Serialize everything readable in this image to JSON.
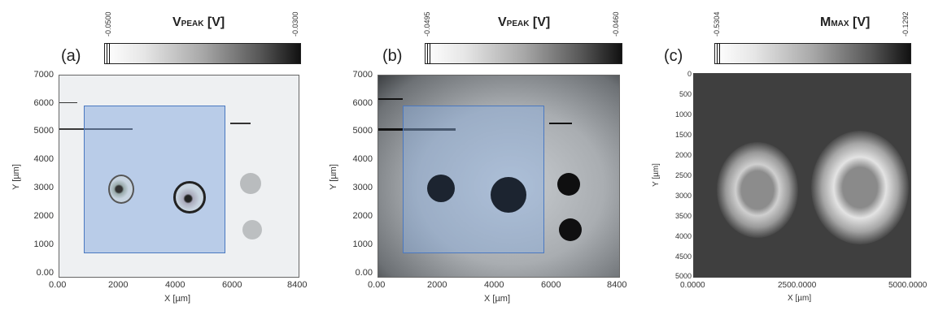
{
  "panels": [
    {
      "label": "(a)",
      "colorbar": {
        "title_main": "V",
        "title_sub": "PEAK",
        "title_unit": " [V]",
        "min": "-0.0500",
        "max": "-0.0300"
      },
      "xticks": [
        "0.00",
        "2000",
        "4000",
        "6000",
        "8400"
      ],
      "yticks": [
        "7000",
        "6000",
        "5000",
        "4000",
        "3000",
        "2000",
        "1000",
        "0.00"
      ],
      "xlabel": "X [µm]",
      "ylabel": "Y [µm]"
    },
    {
      "label": "(b)",
      "colorbar": {
        "title_main": "V",
        "title_sub": "PEAK",
        "title_unit": " [V]",
        "min": "-0.0495",
        "max": "-0.0460"
      },
      "xticks": [
        "0.00",
        "2000",
        "4000",
        "6000",
        "8400"
      ],
      "yticks": [
        "7000",
        "6000",
        "5000",
        "4000",
        "3000",
        "2000",
        "1000",
        "0.00"
      ],
      "xlabel": "X [µm]",
      "ylabel": "Y [µm]"
    },
    {
      "label": "(c)",
      "colorbar": {
        "title_main": "M",
        "title_sub": "MAX",
        "title_unit": " [V]",
        "min": "-0.5304",
        "max": "-0.1292"
      },
      "xticks": [
        "0.0000",
        "2500.0000",
        "5000.0000"
      ],
      "yticks": [
        "0",
        "500",
        "1000",
        "1500",
        "2000",
        "2500",
        "3000",
        "3500",
        "4000",
        "4500",
        "5000"
      ],
      "xlabel": "X [µm]",
      "ylabel": "Y [µm]"
    }
  ]
}
